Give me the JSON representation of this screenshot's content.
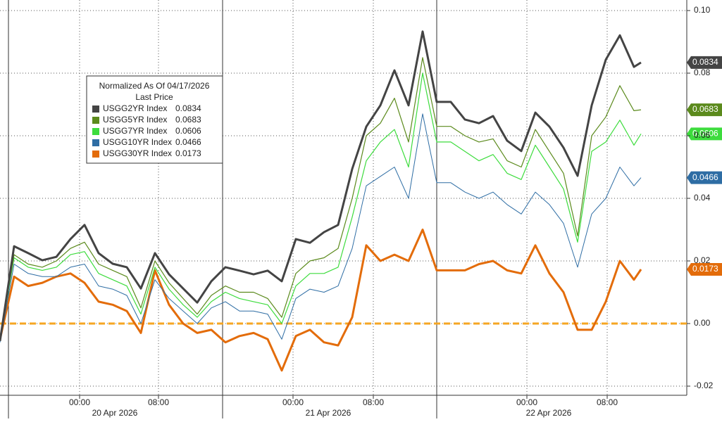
{
  "chart_data": {
    "type": "line",
    "legend_title": "Normalized As Of 04/17/2026",
    "legend_subtitle": "Last Price",
    "x": [
      0,
      2,
      4,
      6,
      8,
      10,
      12,
      14,
      16,
      18,
      20,
      22,
      24,
      26,
      28,
      30,
      32,
      34,
      36,
      38,
      40,
      42,
      44,
      46,
      48,
      50,
      52,
      54,
      56,
      58,
      60,
      62,
      64,
      66,
      68,
      70,
      72,
      74,
      76,
      78,
      80,
      82,
      84,
      86,
      88,
      90,
      91
    ],
    "xlim": [
      0,
      97.5
    ],
    "xticks": [
      {
        "value": 11.3,
        "label": "00:00"
      },
      {
        "value": 22.5,
        "label": "08:00"
      },
      {
        "value": 41.6,
        "label": "00:00"
      },
      {
        "value": 53.0,
        "label": "08:00"
      },
      {
        "value": 74.8,
        "label": "00:00"
      },
      {
        "value": 86.2,
        "label": "08:00"
      }
    ],
    "day_labels": [
      {
        "value": 16.3,
        "label": "20 Apr 2026"
      },
      {
        "value": 46.6,
        "label": "21 Apr 2026"
      },
      {
        "value": 77.9,
        "label": "22 Apr 2026"
      }
    ],
    "ylim": [
      -0.02,
      0.1
    ],
    "yticks": [
      {
        "value": 0.1,
        "label": "0.10"
      },
      {
        "value": 0.08,
        "label": "0.08"
      },
      {
        "value": 0.06,
        "label": "0.06"
      },
      {
        "value": 0.04,
        "label": "0.04"
      },
      {
        "value": 0.02,
        "label": "0.02"
      },
      {
        "value": 0,
        "label": "0.00"
      },
      {
        "value": -0.02,
        "label": "-0.02"
      }
    ],
    "grid": true,
    "reference_line": {
      "value": 0,
      "color": "#f5a623"
    },
    "series": [
      {
        "name": "USGG2YR Index",
        "color": "#444444",
        "width": 3,
        "values": [
          -0.0056,
          0.0247,
          0.0225,
          0.0202,
          0.0213,
          0.027,
          0.0315,
          0.0225,
          0.0191,
          0.018,
          0.0112,
          0.0225,
          0.0157,
          0.0112,
          0.0067,
          0.0135,
          0.018,
          0.0169,
          0.0157,
          0.0169,
          0.0135,
          0.027,
          0.0258,
          0.0292,
          0.0315,
          0.0494,
          0.0629,
          0.0697,
          0.0809,
          0.0697,
          0.0933,
          0.0708,
          0.0708,
          0.0652,
          0.064,
          0.0663,
          0.0584,
          0.0551,
          0.0674,
          0.0629,
          0.0562,
          0.0472,
          0.0697,
          0.0843,
          0.0921,
          0.082,
          0.0834
        ]
      },
      {
        "name": "USGG5YR Index",
        "color": "#5b8a1c",
        "width": 1.2,
        "values": [
          -0.005,
          0.022,
          0.019,
          0.018,
          0.02,
          0.024,
          0.026,
          0.019,
          0.017,
          0.015,
          0.005,
          0.02,
          0.013,
          0.008,
          0.003,
          0.009,
          0.012,
          0.01,
          0.01,
          0.008,
          0.002,
          0.016,
          0.02,
          0.021,
          0.024,
          0.04,
          0.06,
          0.064,
          0.072,
          0.058,
          0.085,
          0.063,
          0.063,
          0.06,
          0.058,
          0.059,
          0.052,
          0.05,
          0.062,
          0.055,
          0.048,
          0.028,
          0.06,
          0.066,
          0.076,
          0.068,
          0.0683
        ]
      },
      {
        "name": "USGG7YR Index",
        "color": "#3ddc3d",
        "width": 1.2,
        "values": [
          -0.005,
          0.021,
          0.018,
          0.017,
          0.018,
          0.022,
          0.023,
          0.016,
          0.014,
          0.012,
          0.003,
          0.018,
          0.011,
          0.006,
          0.002,
          0.007,
          0.01,
          0.008,
          0.007,
          0.006,
          0.0,
          0.012,
          0.016,
          0.016,
          0.018,
          0.034,
          0.052,
          0.058,
          0.062,
          0.05,
          0.08,
          0.058,
          0.058,
          0.055,
          0.052,
          0.054,
          0.048,
          0.046,
          0.057,
          0.05,
          0.043,
          0.026,
          0.055,
          0.058,
          0.065,
          0.057,
          0.0606
        ]
      },
      {
        "name": "USGG10YR Index",
        "color": "#2e6da4",
        "width": 1,
        "values": [
          -0.006,
          0.019,
          0.016,
          0.015,
          0.015,
          0.018,
          0.019,
          0.012,
          0.011,
          0.009,
          0.0,
          0.014,
          0.008,
          0.004,
          0.0,
          0.005,
          0.007,
          0.004,
          0.004,
          0.003,
          -0.005,
          0.008,
          0.011,
          0.01,
          0.012,
          0.024,
          0.044,
          0.047,
          0.05,
          0.04,
          0.067,
          0.045,
          0.045,
          0.042,
          0.04,
          0.042,
          0.038,
          0.035,
          0.042,
          0.038,
          0.032,
          0.018,
          0.035,
          0.04,
          0.05,
          0.044,
          0.0466
        ]
      },
      {
        "name": "USGG30YR Index",
        "color": "#e36c0a",
        "width": 3,
        "values": [
          -0.005,
          0.015,
          0.012,
          0.013,
          0.015,
          0.016,
          0.013,
          0.007,
          0.006,
          0.004,
          -0.003,
          0.017,
          0.006,
          0.0,
          -0.003,
          -0.002,
          -0.006,
          -0.004,
          -0.003,
          -0.005,
          -0.015,
          -0.004,
          -0.002,
          -0.006,
          -0.007,
          0.002,
          0.025,
          0.02,
          0.022,
          0.02,
          0.03,
          0.017,
          0.017,
          0.017,
          0.019,
          0.02,
          0.017,
          0.016,
          0.025,
          0.016,
          0.01,
          -0.002,
          -0.002,
          0.007,
          0.02,
          0.014,
          0.0173
        ]
      }
    ]
  }
}
